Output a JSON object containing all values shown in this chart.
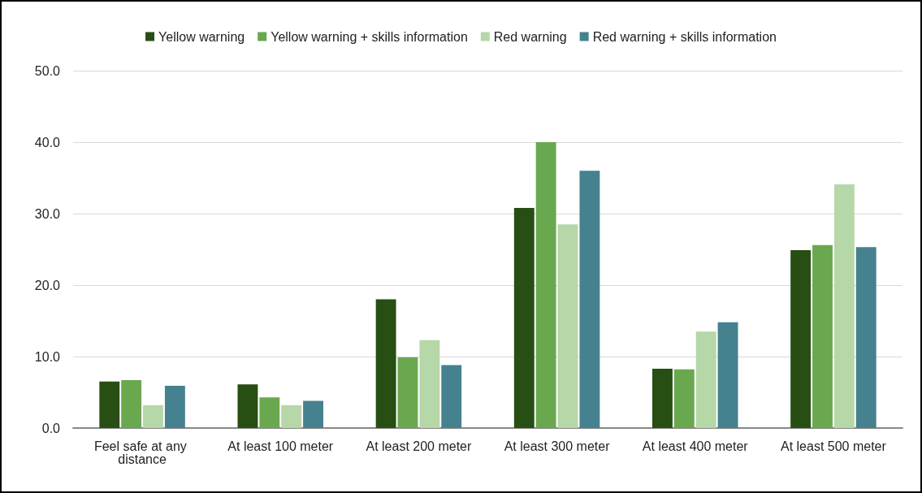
{
  "chart_data": {
    "type": "bar",
    "categories": [
      "Feel safe at any distance",
      "At least 100 meter",
      "At least 200 meter",
      "At least 300 meter",
      "At least 400 meter",
      "At least 500 meter"
    ],
    "series": [
      {
        "name": "Yellow warning",
        "color": "#274e13",
        "values": [
          6.5,
          6.1,
          18.0,
          30.8,
          8.3,
          24.9
        ]
      },
      {
        "name": "Yellow warning + skills information",
        "color": "#6aa84f",
        "values": [
          6.7,
          4.3,
          9.9,
          40.0,
          8.2,
          25.6
        ]
      },
      {
        "name": "Red warning",
        "color": "#b6d7a8",
        "values": [
          3.2,
          3.2,
          12.3,
          28.5,
          13.5,
          34.1
        ]
      },
      {
        "name": "Red warning + skills information",
        "color": "#45818e",
        "values": [
          5.9,
          3.8,
          8.8,
          36.0,
          14.8,
          25.3
        ]
      }
    ],
    "ylim": [
      0,
      50
    ],
    "yticks": [
      {
        "value": 0,
        "label": "0.0"
      },
      {
        "value": 10,
        "label": "10.0"
      },
      {
        "value": 20,
        "label": "20.0"
      },
      {
        "value": 30,
        "label": "30.0"
      },
      {
        "value": 40,
        "label": "40.0"
      },
      {
        "value": 50,
        "label": "50.0"
      }
    ],
    "grid": "y",
    "legend": "top"
  }
}
